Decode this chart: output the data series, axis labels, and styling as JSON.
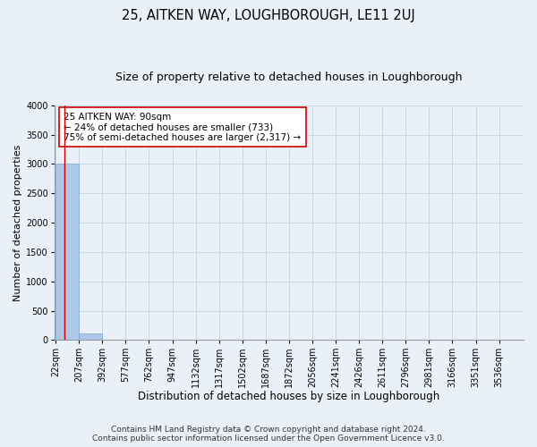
{
  "title_line1": "25, AITKEN WAY, LOUGHBOROUGH, LE11 2UJ",
  "title_line2": "Size of property relative to detached houses in Loughborough",
  "xlabel": "Distribution of detached houses by size in Loughborough",
  "ylabel": "Number of detached properties",
  "footer_line1": "Contains HM Land Registry data © Crown copyright and database right 2024.",
  "footer_line2": "Contains public sector information licensed under the Open Government Licence v3.0.",
  "bar_edges": [
    22,
    207,
    392,
    577,
    762,
    947,
    1132,
    1317,
    1502,
    1687,
    1872,
    2056,
    2241,
    2426,
    2611,
    2796,
    2981,
    3166,
    3351,
    3536,
    3721
  ],
  "bar_heights": [
    3000,
    115,
    5,
    3,
    2,
    2,
    1,
    1,
    1,
    0,
    0,
    0,
    0,
    0,
    0,
    0,
    0,
    0,
    0,
    0
  ],
  "bar_color": "#aec6e8",
  "bar_edgecolor": "#7aabcf",
  "grid_color": "#c8d8e8",
  "background_color": "#eaf0f8",
  "property_line_x": 90,
  "property_line_color": "#cc0000",
  "annotation_line1": "25 AITKEN WAY: 90sqm",
  "annotation_line2": "← 24% of detached houses are smaller (733)",
  "annotation_line3": "75% of semi-detached houses are larger (2,317) →",
  "annotation_box_color": "#ffffff",
  "annotation_box_edgecolor": "#cc0000",
  "ylim": [
    0,
    4000
  ],
  "yticks": [
    0,
    500,
    1000,
    1500,
    2000,
    2500,
    3000,
    3500,
    4000
  ],
  "tick_label_fontsize": 7,
  "title1_fontsize": 10.5,
  "title2_fontsize": 9,
  "xlabel_fontsize": 8.5,
  "ylabel_fontsize": 8,
  "annotation_fontsize": 7.5,
  "footer_fontsize": 6.5
}
